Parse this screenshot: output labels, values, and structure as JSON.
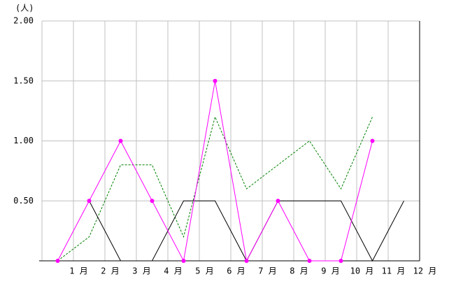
{
  "chart_data": {
    "type": "line",
    "y_label": "(人)",
    "categories": [
      "1 月",
      "2 月",
      "3 月",
      "4 月",
      "5 月",
      "6 月",
      "7 月",
      "8 月",
      "9 月",
      "10 月",
      "11 月",
      "12 月"
    ],
    "series": [
      {
        "color": "#008000",
        "dash": true,
        "markers": false,
        "values": [
          0,
          0.2,
          0.8,
          0.8,
          0.2,
          1.2,
          0.6,
          0.8,
          1.0,
          0.6,
          1.2,
          null
        ]
      },
      {
        "color": "#000000",
        "dash": false,
        "markers": false,
        "values": [
          null,
          0.5,
          0,
          0,
          0.5,
          0.5,
          0,
          0.5,
          0.5,
          0.5,
          0,
          0.5
        ]
      },
      {
        "color": "#ff00ff",
        "dash": false,
        "markers": true,
        "values": [
          0,
          0.5,
          1.0,
          0.5,
          0,
          1.5,
          0,
          0.5,
          0,
          0,
          1.0,
          null
        ]
      }
    ],
    "ylim": [
      0,
      2
    ],
    "yticks": [
      {
        "value": 0.5,
        "label": "0.50"
      },
      {
        "value": 1.0,
        "label": "1.00"
      },
      {
        "value": 1.5,
        "label": "1.50"
      },
      {
        "value": 2.0,
        "label": "2.00"
      }
    ],
    "grid": true
  }
}
